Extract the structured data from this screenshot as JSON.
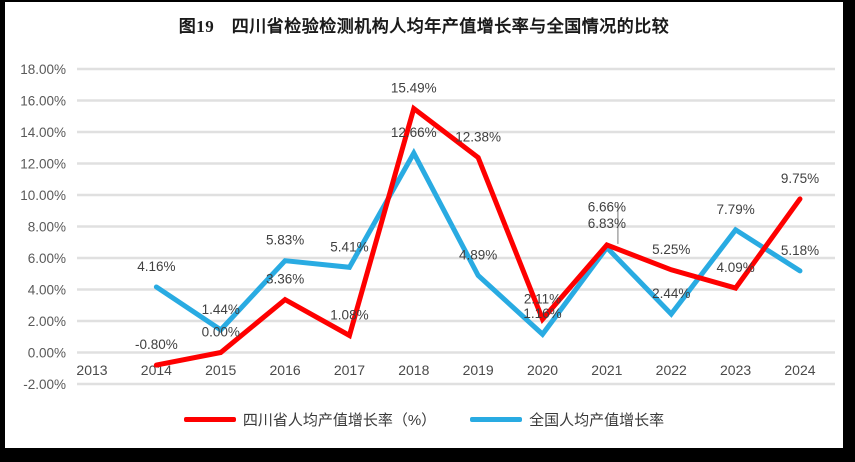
{
  "chart_data": {
    "type": "line",
    "title": "图19　四川省检验检测机构人均年产值增长率与全国情况的比较",
    "categories": [
      "2013",
      "2014",
      "2015",
      "2016",
      "2017",
      "2018",
      "2019",
      "2020",
      "2021",
      "2022",
      "2023",
      "2024"
    ],
    "series": [
      {
        "name": "四川省人均产值增长率（%）",
        "color": "#fe0000",
        "values": [
          null,
          -0.8,
          0.0,
          3.36,
          1.08,
          15.49,
          12.38,
          2.11,
          6.83,
          5.25,
          4.09,
          9.75
        ]
      },
      {
        "name": "全国人均产值增长率",
        "color": "#29abe2",
        "values": [
          null,
          4.16,
          1.44,
          5.83,
          5.41,
          12.66,
          4.89,
          1.16,
          6.66,
          2.44,
          7.79,
          5.18
        ]
      }
    ],
    "ylim": [
      -2,
      18
    ],
    "ytick_step": 2,
    "ytick_format": "0.00%",
    "value_label_format": "0.00%",
    "grid": true,
    "legend_position": "bottom",
    "draw_order": [
      1,
      0
    ],
    "label_overrides": [
      {
        "series": 0,
        "category": "2021",
        "dy": -17,
        "leader": true
      },
      {
        "series": 1,
        "category": "2021",
        "dy": -36
      }
    ],
    "colors": {
      "grid": "#e0e0e0",
      "y_axis_text": "#595959",
      "x_axis_text": "#4a4a4a",
      "data_label": "#404040",
      "leader_line": "#a6a6a6",
      "background": "#ffffff",
      "frame": "#000000"
    }
  }
}
